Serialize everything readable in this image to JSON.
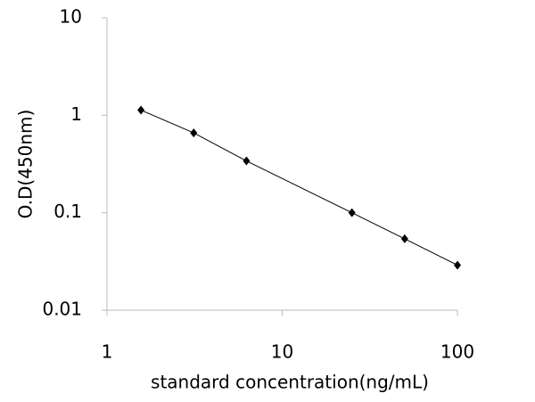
{
  "chart_data": {
    "type": "scatter",
    "x_label": "standard concentration(ng/mL)",
    "y_label": "O.D(450nm)",
    "xscale": "log",
    "yscale": "log",
    "xlim": [
      1,
      100
    ],
    "xticks": [
      1,
      10,
      100
    ],
    "ylim": [
      0.01,
      10
    ],
    "yticks": [
      0.01,
      0.1,
      1,
      10
    ],
    "series": [
      {
        "color": "#000000",
        "x": [
          1.5625,
          3.125,
          6.25,
          25,
          50,
          100
        ],
        "values": [
          1.13,
          0.66,
          0.34,
          0.1,
          0.054,
          0.029
        ]
      }
    ]
  }
}
